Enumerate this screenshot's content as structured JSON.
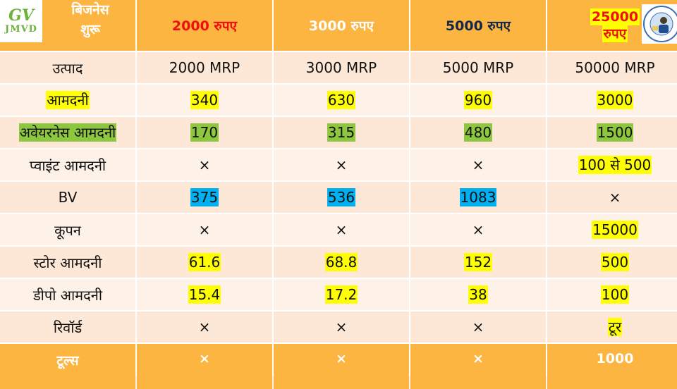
{
  "header": {
    "corner_line1": "बिजनेस",
    "corner_line2": "शुरू",
    "logo_top": "GV",
    "logo_bottom": "JMVD",
    "col1": "2000 रुपए",
    "col2": "3000 रुपए",
    "col3": "5000 रुपए",
    "col4_line1": "25000",
    "col4_line2": "रुपए"
  },
  "rows": [
    {
      "label": "उत्पाद",
      "values": [
        "2000 MRP",
        "3000 MRP",
        "5000 MRP",
        "50000 MRP"
      ]
    },
    {
      "label": "आमदनी",
      "values": [
        "340",
        "630",
        "960",
        "3000"
      ]
    },
    {
      "label": "अवेयरनेस आमदनी",
      "values": [
        "170",
        "315",
        "480",
        "1500"
      ]
    },
    {
      "label": "प्वाइंट आमदनी",
      "values": [
        "×",
        "×",
        "×",
        "100 से 500"
      ]
    },
    {
      "label": "BV",
      "values": [
        "375",
        "536",
        "1083",
        "×"
      ]
    },
    {
      "label": "कूपन",
      "values": [
        "×",
        "×",
        "×",
        "15000"
      ]
    },
    {
      "label": "स्टोर आमदनी",
      "values": [
        "61.6",
        "68.8",
        "152",
        "500"
      ]
    },
    {
      "label": "डीपो आमदनी",
      "values": [
        "15.4",
        "17.2",
        "38",
        "100"
      ]
    },
    {
      "label": "रिवॉर्ड",
      "values": [
        "×",
        "×",
        "×",
        "टूर"
      ]
    }
  ],
  "footer": {
    "label": "टूल्स",
    "values": [
      "×",
      "×",
      "×",
      "1000"
    ]
  },
  "colors": {
    "header_bg": "#fbb540",
    "highlight_yellow": "#ffff00",
    "highlight_green": "#8dc63f",
    "highlight_blue": "#00b0f0",
    "header_red": "#f10e0e"
  }
}
